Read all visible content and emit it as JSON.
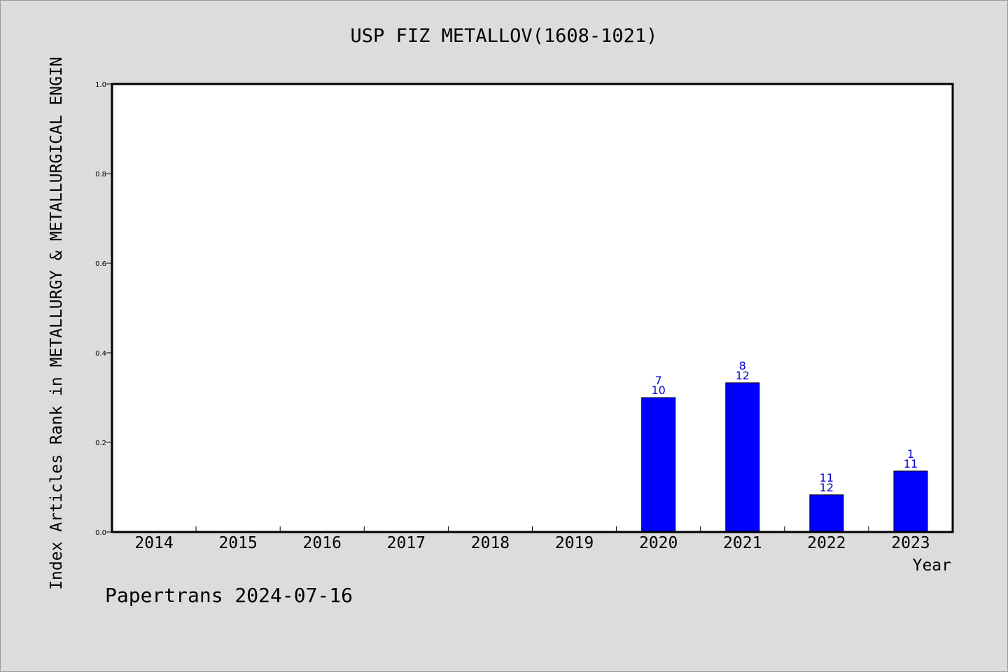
{
  "chart_data": {
    "type": "bar",
    "title": "USP FIZ METALLOV(1608-1021)",
    "xlabel": "Year",
    "ylabel": "Index Articles Rank in METALLURGY & METALLURGICAL ENGIN",
    "categories": [
      "2014",
      "2015",
      "2016",
      "2017",
      "2018",
      "2019",
      "2020",
      "2021",
      "2022",
      "2023"
    ],
    "values": [
      null,
      null,
      null,
      null,
      null,
      null,
      0.3,
      0.333,
      0.083,
      0.136
    ],
    "bar_labels_top": [
      "",
      "",
      "",
      "",
      "",
      "",
      "7",
      "8",
      "11",
      "1"
    ],
    "bar_labels_bottom": [
      "",
      "",
      "",
      "",
      "",
      "",
      "10",
      "12",
      "12",
      "11"
    ],
    "ylim": [
      0,
      1.0
    ],
    "yticks": [
      "0.0",
      "0.2",
      "0.4",
      "0.6",
      "0.8",
      "1.0"
    ],
    "grid": false,
    "bar_color": "#0000ff",
    "label_color": "#0000cc"
  },
  "footer": "Papertrans 2024-07-16"
}
